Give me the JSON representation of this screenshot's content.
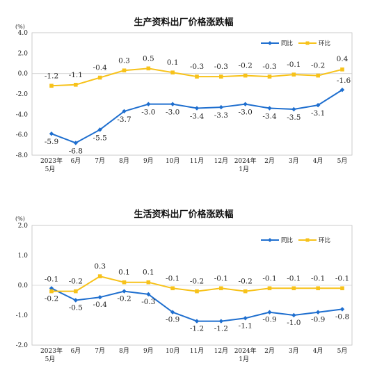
{
  "chart_data": [
    {
      "type": "line",
      "title": "生产资料出厂价格涨跌幅",
      "unit_label": "(%)",
      "ylim": [
        -8.0,
        4.0
      ],
      "yticks": [
        "4.0",
        "2.0",
        "0.0",
        "-2.0",
        "-4.0",
        "-6.0",
        "-8.0"
      ],
      "ytick_values": [
        4,
        2,
        0,
        -2,
        -4,
        -6,
        -8
      ],
      "categories": [
        {
          "line1": "2023年",
          "line2": "5月"
        },
        {
          "line1": "6月",
          "line2": ""
        },
        {
          "line1": "7月",
          "line2": ""
        },
        {
          "line1": "8月",
          "line2": ""
        },
        {
          "line1": "9月",
          "line2": ""
        },
        {
          "line1": "10月",
          "line2": ""
        },
        {
          "line1": "11月",
          "line2": ""
        },
        {
          "line1": "12月",
          "line2": ""
        },
        {
          "line1": "2024年",
          "line2": "1月"
        },
        {
          "line1": "2月",
          "line2": ""
        },
        {
          "line1": "3月",
          "line2": ""
        },
        {
          "line1": "4月",
          "line2": ""
        },
        {
          "line1": "5月",
          "line2": ""
        }
      ],
      "legend_position": "top-right",
      "grid": false,
      "series": [
        {
          "name": "同比",
          "color": "#1f6fcf",
          "values": [
            -5.9,
            -6.8,
            -5.5,
            -3.7,
            -3.0,
            -3.0,
            -3.4,
            -3.3,
            -3.0,
            -3.4,
            -3.5,
            -3.1,
            -1.6
          ],
          "labels": [
            "-5.9",
            "-6.8",
            "-5.5",
            "-3.7",
            "-3.0",
            "-3.0",
            "-3.4",
            "-3.3",
            "-3.0",
            "-3.4",
            "-3.5",
            "-3.1",
            "-1.6"
          ]
        },
        {
          "name": "环比",
          "color": "#f7c21a",
          "values": [
            -1.2,
            -1.1,
            -0.4,
            0.3,
            0.5,
            0.1,
            -0.3,
            -0.3,
            -0.2,
            -0.3,
            -0.1,
            -0.2,
            0.4
          ],
          "labels": [
            "-1.2",
            "-1.1",
            "-0.4",
            "0.3",
            "0.5",
            "0.1",
            "-0.3",
            "-0.3",
            "-0.2",
            "-0.3",
            "-0.1",
            "-0.2",
            "0.4"
          ]
        }
      ]
    },
    {
      "type": "line",
      "title": "生活资料出厂价格涨跌幅",
      "unit_label": "(%)",
      "ylim": [
        -2.0,
        2.0
      ],
      "yticks": [
        "2.0",
        "1.0",
        "0.0",
        "-1.0",
        "-2.0"
      ],
      "ytick_values": [
        2,
        1,
        0,
        -1,
        -2
      ],
      "categories": [
        {
          "line1": "2023年",
          "line2": "5月"
        },
        {
          "line1": "6月",
          "line2": ""
        },
        {
          "line1": "7月",
          "line2": ""
        },
        {
          "line1": "8月",
          "line2": ""
        },
        {
          "line1": "9月",
          "line2": ""
        },
        {
          "line1": "10月",
          "line2": ""
        },
        {
          "line1": "11月",
          "line2": ""
        },
        {
          "line1": "12月",
          "line2": ""
        },
        {
          "line1": "2024年",
          "line2": "1月"
        },
        {
          "line1": "2月",
          "line2": ""
        },
        {
          "line1": "3月",
          "line2": ""
        },
        {
          "line1": "4月",
          "line2": ""
        },
        {
          "line1": "5月",
          "line2": ""
        }
      ],
      "legend_position": "top-right",
      "grid": false,
      "series": [
        {
          "name": "同比",
          "color": "#1f6fcf",
          "values": [
            -0.1,
            -0.5,
            -0.4,
            -0.2,
            -0.3,
            -0.9,
            -1.2,
            -1.2,
            -1.1,
            -0.9,
            -1.0,
            -0.9,
            -0.8
          ],
          "labels": [
            "-0.1",
            "-0.5",
            "-0.4",
            "-0.2",
            "-0.3",
            "-0.9",
            "-1.2",
            "-1.2",
            "-1.1",
            "-0.9",
            "-1.0",
            "-0.9",
            "-0.8"
          ]
        },
        {
          "name": "环比",
          "color": "#f7c21a",
          "values": [
            -0.2,
            -0.2,
            0.3,
            0.1,
            0.1,
            -0.1,
            -0.2,
            -0.1,
            -0.2,
            -0.1,
            -0.1,
            -0.1,
            -0.1
          ],
          "labels": [
            "-0.2",
            "-0.2",
            "0.3",
            "0.1",
            "0.1",
            "-0.1",
            "-0.2",
            "-0.1",
            "-0.2",
            "-0.1",
            "-0.1",
            "-0.1",
            "-0.1"
          ]
        }
      ]
    }
  ]
}
